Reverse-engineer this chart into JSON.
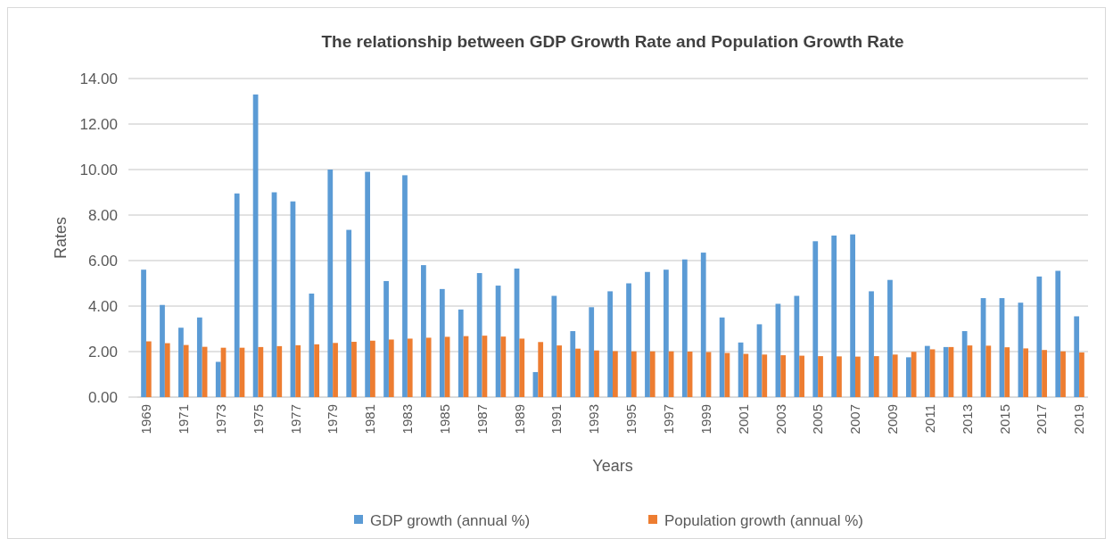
{
  "chart_data": {
    "type": "bar",
    "title": "The relationship between GDP Growth Rate and Population Growth Rate",
    "xlabel": "Years",
    "ylabel": "Rates",
    "categories": [
      "1969",
      null,
      "1971",
      null,
      "1973",
      null,
      "1975",
      null,
      "1977",
      null,
      "1979",
      null,
      "1981",
      null,
      "1983",
      null,
      "1985",
      null,
      "1987",
      null,
      "1989",
      null,
      "1991",
      null,
      "1993",
      null,
      "1995",
      null,
      "1997",
      null,
      "1999",
      null,
      "2001",
      null,
      "2003",
      null,
      "2005",
      null,
      "2007",
      null,
      "2009",
      null,
      "2011",
      null,
      "2013",
      null,
      "2015",
      null,
      "2017",
      null,
      "2019"
    ],
    "series": [
      {
        "name": "GDP growth (annual %)",
        "color": "#5b9bd5",
        "values": [
          5.6,
          4.05,
          3.05,
          3.5,
          1.55,
          8.95,
          13.3,
          9.0,
          8.6,
          4.55,
          10.0,
          7.35,
          9.9,
          5.1,
          9.75,
          5.8,
          4.75,
          3.85,
          5.45,
          4.9,
          5.65,
          1.1,
          4.45,
          2.9,
          3.95,
          4.65,
          5.0,
          5.5,
          5.6,
          6.05,
          6.35,
          3.5,
          2.4,
          3.2,
          4.1,
          4.45,
          6.85,
          7.1,
          7.15,
          4.65,
          5.15,
          1.75,
          2.25,
          2.2,
          2.9,
          4.35,
          4.35,
          4.15,
          5.3,
          5.55,
          3.55
        ]
      },
      {
        "name": "Population growth (annual %)",
        "color": "#ed7d31",
        "values": [
          2.45,
          2.37,
          2.29,
          2.21,
          2.17,
          2.17,
          2.2,
          2.24,
          2.28,
          2.32,
          2.38,
          2.43,
          2.48,
          2.53,
          2.57,
          2.61,
          2.65,
          2.68,
          2.7,
          2.66,
          2.57,
          2.42,
          2.27,
          2.13,
          2.05,
          2.02,
          2.01,
          2.01,
          2.01,
          2.0,
          1.98,
          1.94,
          1.9,
          1.87,
          1.84,
          1.82,
          1.8,
          1.79,
          1.78,
          1.8,
          1.87,
          1.99,
          2.1,
          2.2,
          2.27,
          2.26,
          2.19,
          2.14,
          2.07,
          2.01,
          1.96
        ]
      }
    ],
    "ylim": [
      0,
      14
    ],
    "yticks": [
      {
        "value": 0,
        "label": "0.00"
      },
      {
        "value": 2,
        "label": "2.00"
      },
      {
        "value": 4,
        "label": "4.00"
      },
      {
        "value": 6,
        "label": "6.00"
      },
      {
        "value": 8,
        "label": "8.00"
      },
      {
        "value": 10,
        "label": "10.00"
      },
      {
        "value": 12,
        "label": "12.00"
      },
      {
        "value": 14,
        "label": "14.00"
      }
    ],
    "grid": "y",
    "legend": "bottom"
  }
}
